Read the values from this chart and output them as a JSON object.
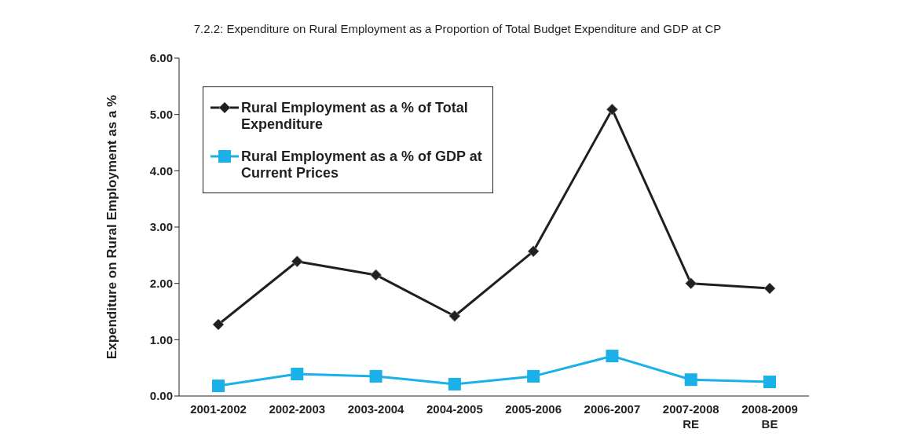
{
  "chart_data": {
    "type": "line",
    "title": "7.2.2: Expenditure on Rural Employment as a Proportion of Total Budget Expenditure and GDP at CP",
    "ylabel": "Expenditure on Rural Employment as a %",
    "categories": [
      "2001-2002",
      "2002-2003",
      "2003-2004",
      "2004-2005",
      "2005-2006",
      "2006-2007",
      "2007-2008\nRE",
      "2008-2009\nBE"
    ],
    "series": [
      {
        "name": "Rural Employment as a % of Total Expenditure",
        "color": "#231f20",
        "marker": "diamond",
        "values": [
          1.27,
          2.39,
          2.15,
          1.42,
          2.57,
          5.09,
          2.0,
          1.91
        ]
      },
      {
        "name": "Rural Employment as a % of GDP at Current Prices",
        "color": "#1ab0e8",
        "marker": "square",
        "values": [
          0.18,
          0.39,
          0.35,
          0.21,
          0.35,
          0.71,
          0.29,
          0.25
        ]
      }
    ],
    "ylim": [
      0,
      6
    ],
    "yticks": [
      {
        "value": 0,
        "label": "0.00"
      },
      {
        "value": 1,
        "label": "1.00"
      },
      {
        "value": 2,
        "label": "2.00"
      },
      {
        "value": 3,
        "label": "3.00"
      },
      {
        "value": 4,
        "label": "4.00"
      },
      {
        "value": 5,
        "label": "5.00"
      },
      {
        "value": 6,
        "label": "6.00"
      }
    ],
    "grid": false,
    "legend": "top left",
    "line_style": "solid"
  }
}
